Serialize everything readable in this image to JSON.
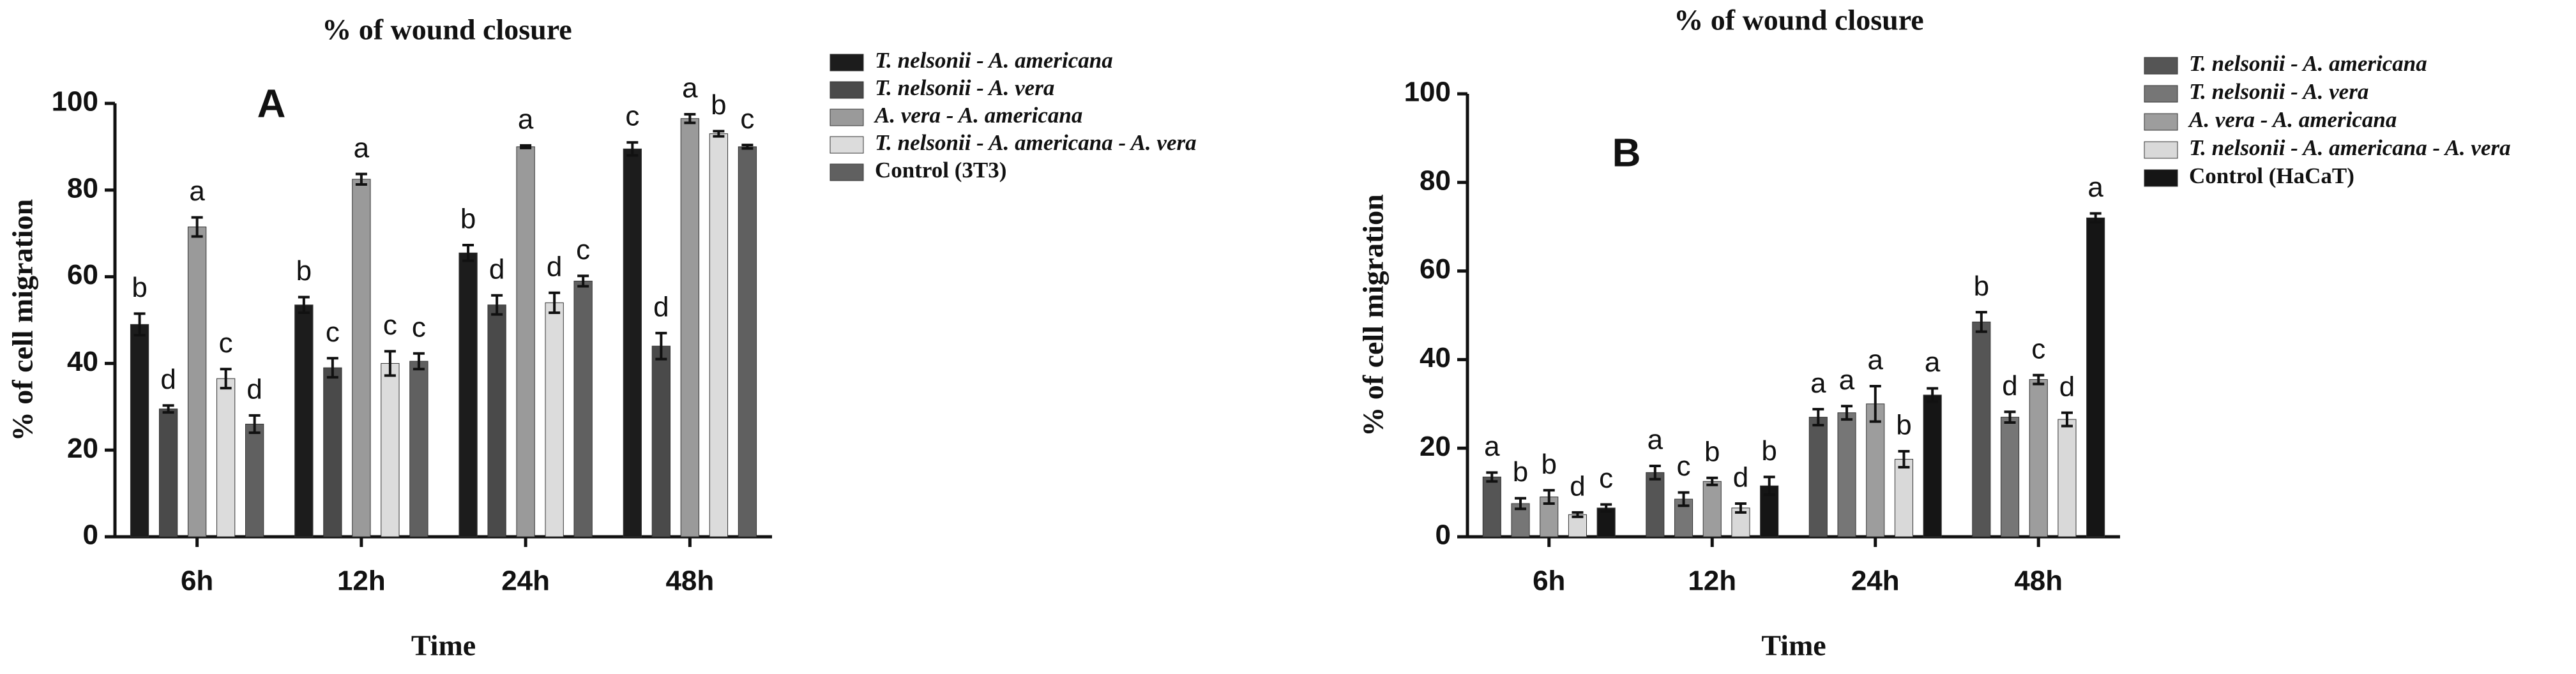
{
  "chart_data": [
    {
      "type": "bar",
      "title": "% of wound closure",
      "panel_label": "A",
      "xlabel": "Time",
      "ylabel": "% of cell migration",
      "categories": [
        "6h",
        "12h",
        "24h",
        "48h"
      ],
      "ylim": [
        0,
        100
      ],
      "yticks": [
        0,
        20,
        40,
        60,
        80,
        100
      ],
      "series": [
        {
          "name": "T. nelsonii - A. americana",
          "italic": true,
          "color": "#1c1c1c",
          "values": [
            49,
            53.5,
            65.5,
            89.5
          ],
          "errors": [
            2.5,
            1.8,
            1.8,
            1.5
          ],
          "labels": [
            "b",
            "b",
            "b",
            "c"
          ]
        },
        {
          "name": "T. nelsonii - A. vera",
          "italic": true,
          "color": "#4a4a4a",
          "values": [
            29.5,
            39,
            53.5,
            44
          ],
          "errors": [
            0.8,
            2.2,
            2.2,
            3
          ],
          "labels": [
            "d",
            "c",
            "d",
            "d"
          ]
        },
        {
          "name": "A. vera  - A. americana",
          "italic": true,
          "color": "#9a9a9a",
          "values": [
            71.5,
            82.5,
            90,
            96.5
          ],
          "errors": [
            2.2,
            1.2,
            0.3,
            1
          ],
          "labels": [
            "a",
            "a",
            "a",
            "a"
          ]
        },
        {
          "name": "T. nelsonii - A. americana - A. vera",
          "italic": true,
          "color": "#dcdcdc",
          "values": [
            36.5,
            40,
            54,
            93
          ],
          "errors": [
            2.2,
            2.8,
            2.3,
            0.6
          ],
          "labels": [
            "c",
            "c",
            "d",
            "b"
          ]
        },
        {
          "name": "Control (3T3)",
          "italic": false,
          "color": "#606060",
          "values": [
            26,
            40.5,
            59,
            90
          ],
          "errors": [
            2,
            1.8,
            1.2,
            0.4
          ],
          "labels": [
            "d",
            "c",
            "c",
            "c"
          ]
        }
      ]
    },
    {
      "type": "bar",
      "title": "% of wound closure",
      "panel_label": "B",
      "xlabel": "Time",
      "ylabel": "% of cell migration",
      "categories": [
        "6h",
        "12h",
        "24h",
        "48h"
      ],
      "ylim": [
        0,
        100
      ],
      "yticks": [
        0,
        20,
        40,
        60,
        80,
        100
      ],
      "series": [
        {
          "name": "T. nelsonii - A. americana",
          "italic": true,
          "color": "#555555",
          "values": [
            13.5,
            14.5,
            27,
            48.5
          ],
          "errors": [
            1,
            1.5,
            1.8,
            2.2
          ],
          "labels": [
            "a",
            "a",
            "a",
            "b"
          ]
        },
        {
          "name": "T. nelsonii - A. vera",
          "italic": true,
          "color": "#767676",
          "values": [
            7.5,
            8.5,
            28,
            27
          ],
          "errors": [
            1.2,
            1.5,
            1.5,
            1.2
          ],
          "labels": [
            "b",
            "c",
            "a",
            "d"
          ]
        },
        {
          "name": "A. vera  - A. americana",
          "italic": true,
          "color": "#9d9d9d",
          "values": [
            9,
            12.5,
            30,
            35.5
          ],
          "errors": [
            1.5,
            0.8,
            4,
            1
          ],
          "labels": [
            "b",
            "b",
            "a",
            "c"
          ]
        },
        {
          "name": "T. nelsonii - A. americana - A. vera",
          "italic": true,
          "color": "#d9d9d9",
          "values": [
            5,
            6.5,
            17.5,
            26.5
          ],
          "errors": [
            0.5,
            1,
            1.8,
            1.5
          ],
          "labels": [
            "d",
            "d",
            "b",
            "d"
          ]
        },
        {
          "name": "Control (HaCaT)",
          "italic": false,
          "color": "#151515",
          "values": [
            6.5,
            11.5,
            32,
            72
          ],
          "errors": [
            0.8,
            2,
            1.5,
            1
          ],
          "labels": [
            "c",
            "b",
            "a",
            "a"
          ]
        }
      ]
    }
  ]
}
